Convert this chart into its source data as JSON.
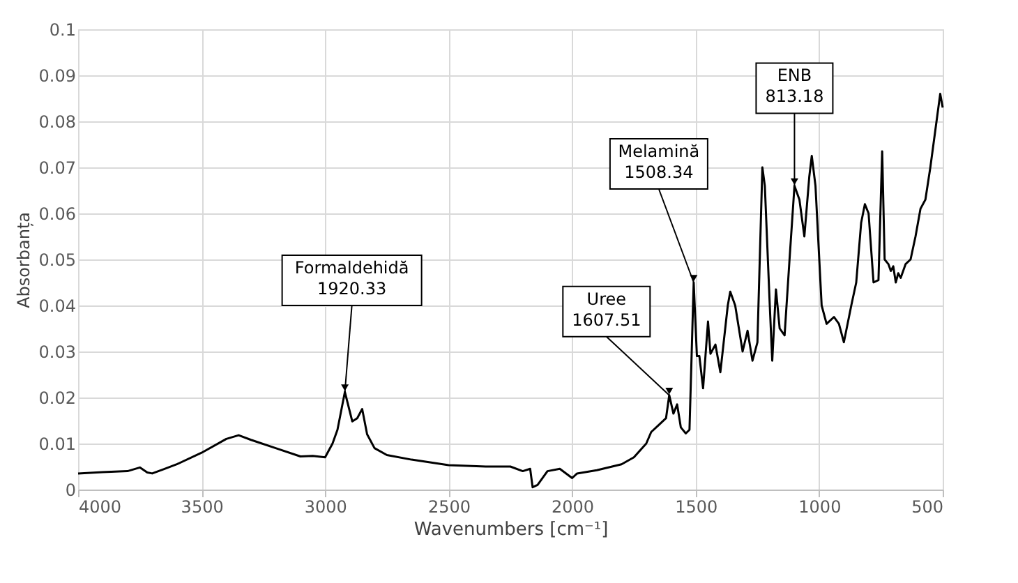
{
  "chart_data": {
    "type": "line",
    "xlabel": "Wavenumbers [cm⁻¹]",
    "ylabel": "Absorbanța",
    "xlim": [
      4000,
      500
    ],
    "xticks": [
      4000,
      3500,
      3000,
      2500,
      2000,
      1500,
      1000,
      500
    ],
    "ylim": [
      0,
      0.1
    ],
    "yticks": [
      0,
      0.01,
      0.02,
      0.03,
      0.04,
      0.05,
      0.06,
      0.07,
      0.08,
      0.09,
      0.1
    ],
    "grid": true,
    "marker": "none",
    "line_style": "solid",
    "series": [
      {
        "color": "#000000",
        "x": [
          4000,
          3900,
          3800,
          3750,
          3720,
          3700,
          3650,
          3600,
          3500,
          3400,
          3350,
          3300,
          3200,
          3100,
          3050,
          3000,
          2970,
          2950,
          2920,
          2890,
          2870,
          2850,
          2830,
          2800,
          2750,
          2650,
          2500,
          2350,
          2250,
          2200,
          2170,
          2160,
          2140,
          2100,
          2050,
          2000,
          1980,
          1900,
          1800,
          1750,
          1700,
          1680,
          1650,
          1620,
          1607,
          1590,
          1575,
          1560,
          1540,
          1525,
          1508,
          1495,
          1485,
          1470,
          1450,
          1440,
          1420,
          1400,
          1370,
          1360,
          1340,
          1310,
          1290,
          1270,
          1250,
          1230,
          1220,
          1200,
          1190,
          1175,
          1160,
          1140,
          1120,
          1100,
          1080,
          1060,
          1040,
          1030,
          1015,
          990,
          970,
          940,
          920,
          900,
          870,
          850,
          830,
          815,
          800,
          780,
          760,
          745,
          735,
          720,
          710,
          700,
          690,
          680,
          670,
          650,
          630,
          610,
          590,
          570,
          550,
          530,
          510,
          500
        ],
        "values": [
          0.0035,
          0.0038,
          0.004,
          0.0048,
          0.0037,
          0.0035,
          0.0045,
          0.0055,
          0.008,
          0.011,
          0.0118,
          0.0108,
          0.009,
          0.0072,
          0.0073,
          0.007,
          0.01,
          0.013,
          0.0212,
          0.0148,
          0.0155,
          0.0175,
          0.012,
          0.009,
          0.0075,
          0.0065,
          0.0053,
          0.005,
          0.005,
          0.004,
          0.0045,
          0.0005,
          0.001,
          0.004,
          0.0045,
          0.0025,
          0.0035,
          0.0042,
          0.0055,
          0.007,
          0.01,
          0.0125,
          0.014,
          0.0155,
          0.0205,
          0.0165,
          0.0185,
          0.0135,
          0.0122,
          0.013,
          0.045,
          0.029,
          0.029,
          0.022,
          0.0365,
          0.0295,
          0.0315,
          0.0255,
          0.04,
          0.043,
          0.04,
          0.03,
          0.0345,
          0.028,
          0.032,
          0.07,
          0.066,
          0.04,
          0.028,
          0.0435,
          0.035,
          0.0335,
          0.05,
          0.066,
          0.063,
          0.055,
          0.068,
          0.0725,
          0.066,
          0.04,
          0.036,
          0.0375,
          0.036,
          0.032,
          0.04,
          0.045,
          0.058,
          0.062,
          0.06,
          0.045,
          0.0455,
          0.0735,
          0.05,
          0.049,
          0.0475,
          0.0485,
          0.045,
          0.047,
          0.046,
          0.049,
          0.05,
          0.055,
          0.061,
          0.063,
          0.07,
          0.078,
          0.086,
          0.083
        ]
      }
    ],
    "annotations": [
      {
        "text": "Formaldehidă\n1920.33",
        "x": 2920,
        "y": 0.0212
      },
      {
        "text": "Uree\n1607.51",
        "x": 1607,
        "y": 0.0205
      },
      {
        "text": "Melamină\n1508.34",
        "x": 1508,
        "y": 0.045
      },
      {
        "text": "ENB\n813.18",
        "x": 1100,
        "y": 0.066
      }
    ]
  }
}
